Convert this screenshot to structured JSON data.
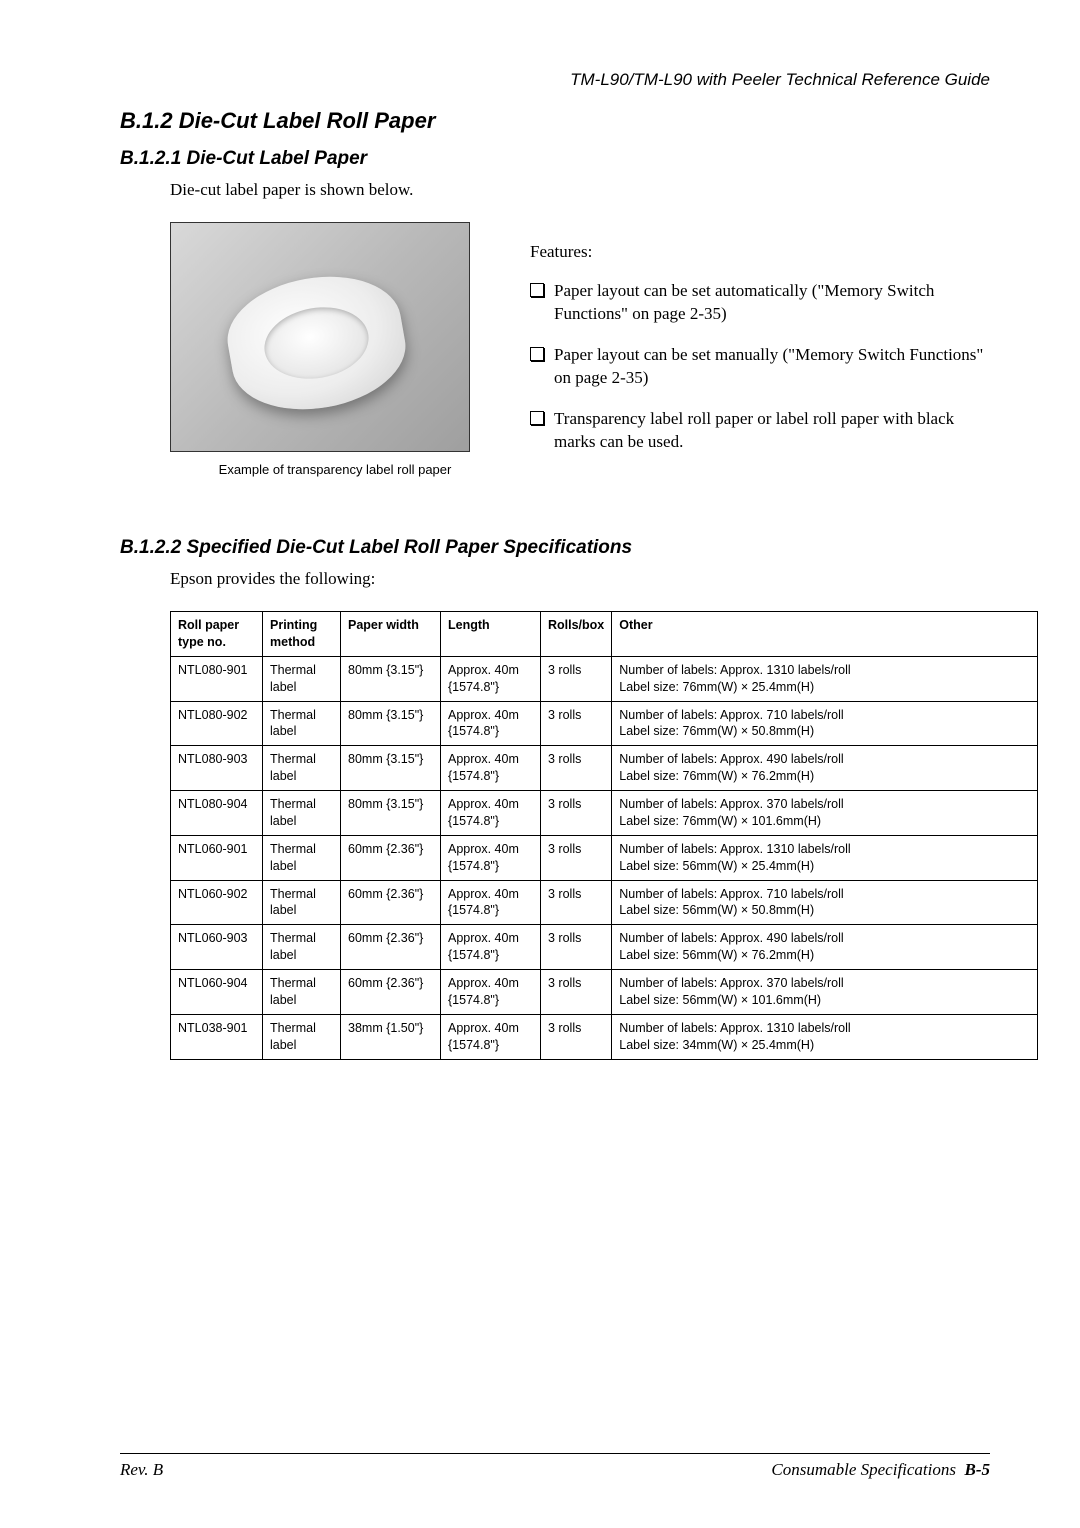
{
  "header": {
    "doc_title": "TM-L90/TM-L90 with Peeler Technical Reference Guide"
  },
  "sec": {
    "h1": "B.1.2   Die-Cut Label Roll Paper",
    "h2a": "B.1.2.1 Die-Cut Label Paper",
    "intro_a": "Die-cut label paper is shown below.",
    "caption": "Example of transparency label roll paper",
    "features_title": "Features:",
    "bullets": [
      "Paper layout can be set automatically (\"Memory Switch Functions\" on page 2-35)",
      "Paper layout can be set manually (\"Memory Switch Functions\" on page 2-35)",
      "Transparency label roll paper or label roll paper with black marks can be used."
    ],
    "h2b": "B.1.2.2 Specified Die-Cut Label Roll Paper Specifications",
    "intro_b": "Epson provides the following:"
  },
  "table": {
    "headers": [
      "Roll paper type no.",
      "Printing method",
      "Paper width",
      "Length",
      "Rolls/box",
      "Other"
    ],
    "rows": [
      [
        "NTL080-901",
        "Thermal label",
        "80mm {3.15\"}",
        "Approx. 40m {1574.8\"}",
        "3 rolls",
        "Number of labels: Approx. 1310 labels/roll\nLabel size: 76mm(W) × 25.4mm(H)"
      ],
      [
        "NTL080-902",
        "Thermal label",
        "80mm {3.15\"}",
        "Approx. 40m {1574.8\"}",
        "3 rolls",
        "Number of labels: Approx. 710 labels/roll\nLabel size: 76mm(W) × 50.8mm(H)"
      ],
      [
        "NTL080-903",
        "Thermal label",
        "80mm {3.15\"}",
        "Approx. 40m {1574.8\"}",
        "3 rolls",
        "Number of labels: Approx. 490 labels/roll\nLabel size: 76mm(W) × 76.2mm(H)"
      ],
      [
        "NTL080-904",
        "Thermal label",
        "80mm {3.15\"}",
        "Approx. 40m {1574.8\"}",
        "3 rolls",
        "Number of labels: Approx. 370 labels/roll\nLabel size: 76mm(W) × 101.6mm(H)"
      ],
      [
        "NTL060-901",
        "Thermal label",
        "60mm {2.36\"}",
        "Approx. 40m {1574.8\"}",
        "3 rolls",
        "Number of labels: Approx. 1310 labels/roll\nLabel size: 56mm(W) × 25.4mm(H)"
      ],
      [
        "NTL060-902",
        "Thermal label",
        "60mm {2.36\"}",
        "Approx. 40m {1574.8\"}",
        "3 rolls",
        "Number of labels: Approx. 710 labels/roll\nLabel size: 56mm(W) × 50.8mm(H)"
      ],
      [
        "NTL060-903",
        "Thermal label",
        "60mm {2.36\"}",
        "Approx. 40m {1574.8\"}",
        "3 rolls",
        "Number of labels: Approx. 490 labels/roll\nLabel size: 56mm(W) × 76.2mm(H)"
      ],
      [
        "NTL060-904",
        "Thermal label",
        "60mm {2.36\"}",
        "Approx. 40m {1574.8\"}",
        "3 rolls",
        "Number of labels: Approx. 370 labels/roll\nLabel size: 56mm(W) × 101.6mm(H)"
      ],
      [
        "NTL038-901",
        "Thermal label",
        "38mm {1.50\"}",
        "Approx. 40m {1574.8\"}",
        "3 rolls",
        "Number of labels: Approx. 1310 labels/roll\nLabel size: 34mm(W) × 25.4mm(H)"
      ]
    ]
  },
  "footer": {
    "rev": "Rev. B",
    "section": "Consumable Specifications",
    "page": "B-5"
  }
}
